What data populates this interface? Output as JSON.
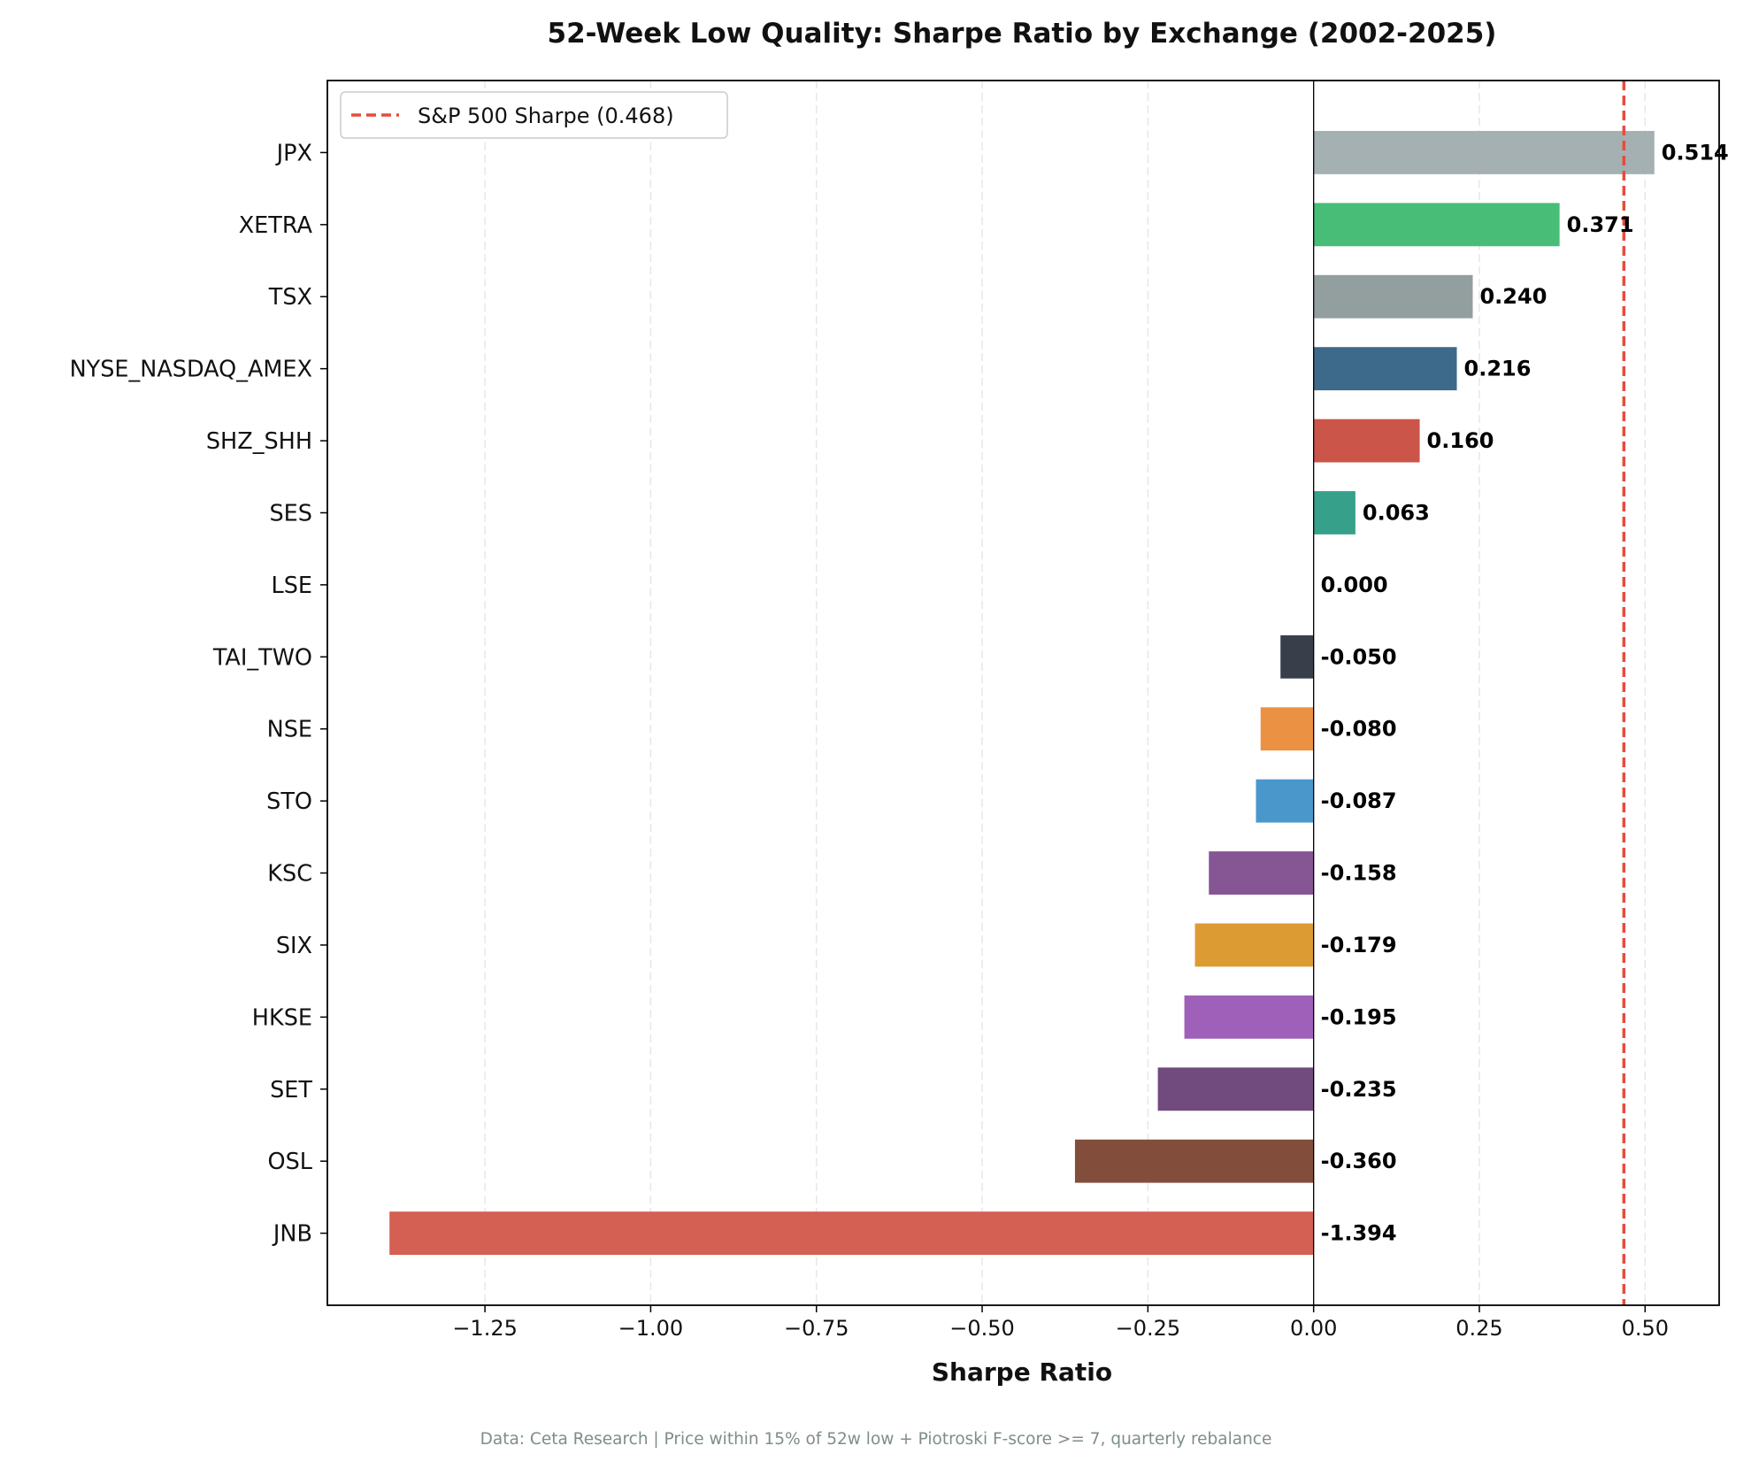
{
  "chart_data": {
    "type": "bar",
    "orientation": "horizontal",
    "title": "52-Week Low Quality: Sharpe Ratio by Exchange (2002-2025)",
    "xlabel": "Sharpe Ratio",
    "ylabel": "",
    "xlim": [
      -1.4877,
      0.6117
    ],
    "xticks": [
      -1.25,
      -1.0,
      -0.75,
      -0.5,
      -0.25,
      0.0,
      0.25,
      0.5
    ],
    "xtick_labels": [
      "−1.25",
      "−1.00",
      "−0.75",
      "−0.50",
      "−0.25",
      "0.00",
      "0.25",
      "0.50"
    ],
    "grid": "x-axis dashed",
    "categories": [
      "JPX",
      "XETRA",
      "TSX",
      "NYSE_NASDAQ_AMEX",
      "SHZ_SHH",
      "SES",
      "LSE",
      "TAI_TWO",
      "NSE",
      "STO",
      "KSC",
      "SIX",
      "HKSE",
      "SET",
      "OSL",
      "JNB"
    ],
    "values": [
      0.514,
      0.371,
      0.24,
      0.216,
      0.16,
      0.063,
      0.0,
      -0.05,
      -0.08,
      -0.087,
      -0.158,
      -0.179,
      -0.195,
      -0.235,
      -0.36,
      -1.394
    ],
    "value_labels": [
      "0.514",
      "0.371",
      "0.240",
      "0.216",
      "0.160",
      "0.063",
      "0.000",
      "-0.050",
      "-0.080",
      "-0.087",
      "-0.158",
      "-0.179",
      "-0.195",
      "-0.235",
      "-0.360",
      "-1.394"
    ],
    "colors": [
      "#a4b0b1",
      "#48bd77",
      "#939e9e",
      "#3d6a8b",
      "#cb5549",
      "#37a08b",
      "#4fa663",
      "#393f4a",
      "#eb9144",
      "#4a97cb",
      "#855594",
      "#dd9b34",
      "#9e60b8",
      "#714b7e",
      "#824e3b",
      "#d45f53"
    ],
    "reference_line": {
      "value": 0.468,
      "label": "S&P 500 Sharpe (0.468)",
      "color": "#e74c3c",
      "style": "dashed"
    },
    "legend": {
      "position": "top-left",
      "entries": [
        "S&P 500 Sharpe (0.468)"
      ]
    },
    "footnote": "Data: Ceta Research | Price within 15% of 52w low + Piotroski F-score >= 7, quarterly rebalance"
  }
}
